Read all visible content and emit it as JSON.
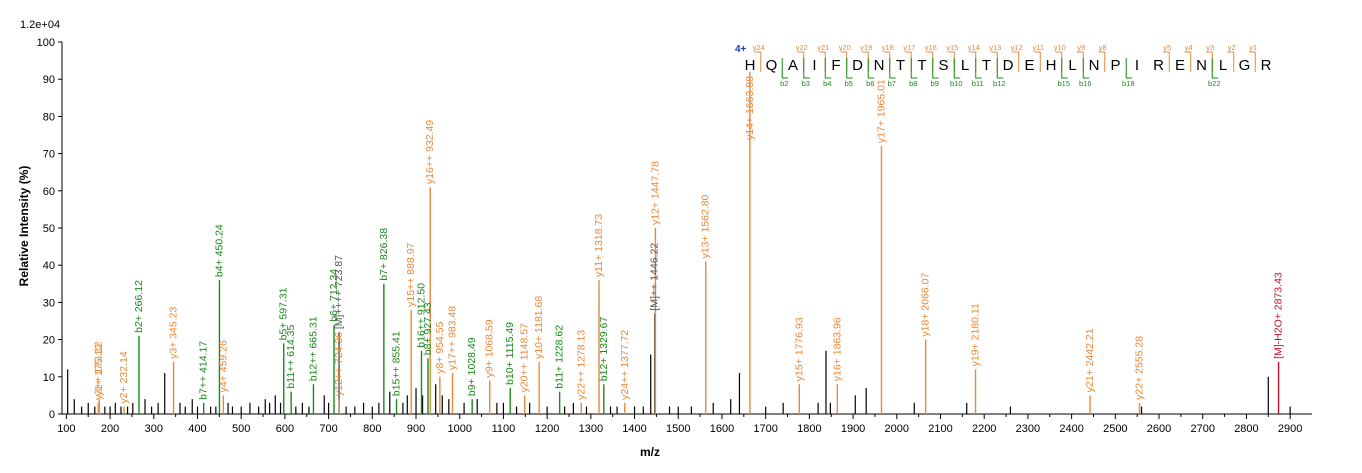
{
  "chart_data": {
    "type": "bar",
    "title": "",
    "scale_label": "1.2e+04",
    "xlabel": "m/z",
    "ylabel": "Relative  Intensity (%)",
    "xlim": [
      90,
      2950
    ],
    "ylim": [
      0,
      100
    ],
    "x_ticks": [
      100,
      200,
      300,
      400,
      500,
      600,
      700,
      800,
      900,
      1000,
      1100,
      1200,
      1300,
      1400,
      1500,
      1600,
      1700,
      1800,
      1900,
      2000,
      2100,
      2200,
      2300,
      2400,
      2500,
      2600,
      2700,
      2800,
      2900
    ],
    "y_ticks": [
      0,
      10,
      20,
      30,
      40,
      50,
      60,
      70,
      80,
      90,
      100
    ],
    "colors": {
      "y": "#e8893a",
      "b": "#1a8a1a",
      "precursor": "#c0102a",
      "unassigned": "#000000",
      "neutral": "#555555",
      "charge": "#1a3fb0"
    },
    "annotated_peaks": [
      {
        "mz": 175.12,
        "intensity": 4,
        "label": "y1+ 175.12",
        "type": "y"
      },
      {
        "mz": 173.12,
        "intensity": 3,
        "label": "y3++ 173.12",
        "type": "y"
      },
      {
        "mz": 232.14,
        "intensity": 2,
        "label": "y2+ 232.14",
        "type": "y"
      },
      {
        "mz": 266.12,
        "intensity": 21,
        "label": "b2+ 266.12",
        "type": "b"
      },
      {
        "mz": 345.23,
        "intensity": 14,
        "label": "y3+ 345.23",
        "type": "y"
      },
      {
        "mz": 414.17,
        "intensity": 3,
        "label": "b7++ 414.17",
        "type": "b"
      },
      {
        "mz": 450.24,
        "intensity": 36,
        "label": "b4+ 450.24",
        "type": "b"
      },
      {
        "mz": 459.26,
        "intensity": 5,
        "label": "y4+ 459.26",
        "type": "y"
      },
      {
        "mz": 597.31,
        "intensity": 19,
        "label": "b5+ 597.31",
        "type": "b"
      },
      {
        "mz": 614.35,
        "intensity": 6,
        "label": "b11++ 614.35",
        "type": "b"
      },
      {
        "mz": 665.31,
        "intensity": 8,
        "label": "b12++ 665.31",
        "type": "b"
      },
      {
        "mz": 712.34,
        "intensity": 24,
        "label": "b6+ 712.34",
        "type": "b"
      },
      {
        "mz": 723.87,
        "intensity": 22,
        "label": "[M]++++ 723.87",
        "type": "neutral"
      },
      {
        "mz": 724.36,
        "intensity": 4,
        "label": "y12++ 724.36",
        "type": "y"
      },
      {
        "mz": 826.38,
        "intensity": 35,
        "label": "b7+ 826.38",
        "type": "b"
      },
      {
        "mz": 855.41,
        "intensity": 4,
        "label": "b15++ 855.41",
        "type": "b"
      },
      {
        "mz": 888.97,
        "intensity": 28,
        "label": "y15++ 888.97",
        "type": "y"
      },
      {
        "mz": 912.5,
        "intensity": 17,
        "label": "b16++ 912.50",
        "type": "b"
      },
      {
        "mz": 927.43,
        "intensity": 15,
        "label": "b8+ 927.43",
        "type": "b"
      },
      {
        "mz": 932.49,
        "intensity": 61,
        "label": "y16++ 932.49",
        "type": "y"
      },
      {
        "mz": 954.55,
        "intensity": 10,
        "label": "y8+ 954.55",
        "type": "y"
      },
      {
        "mz": 983.48,
        "intensity": 11,
        "label": "y17++ 983.48",
        "type": "y"
      },
      {
        "mz": 1028.49,
        "intensity": 4,
        "label": "b9+ 1028.49",
        "type": "b"
      },
      {
        "mz": 1068.59,
        "intensity": 9,
        "label": "y9+ 1068.59",
        "type": "y"
      },
      {
        "mz": 1115.49,
        "intensity": 7,
        "label": "b10+ 1115.49",
        "type": "b"
      },
      {
        "mz": 1148.57,
        "intensity": 5,
        "label": "y20++ 1148.57",
        "type": "y"
      },
      {
        "mz": 1181.68,
        "intensity": 14,
        "label": "y10+ 1181.68",
        "type": "y"
      },
      {
        "mz": 1228.62,
        "intensity": 6,
        "label": "b11+ 1228.62",
        "type": "b"
      },
      {
        "mz": 1278.13,
        "intensity": 3,
        "label": "y22++ 1278.13",
        "type": "y"
      },
      {
        "mz": 1318.73,
        "intensity": 36,
        "label": "y11+ 1318.73",
        "type": "y"
      },
      {
        "mz": 1329.67,
        "intensity": 8,
        "label": "b12+ 1329.67",
        "type": "b"
      },
      {
        "mz": 1377.72,
        "intensity": 3,
        "label": "y24++ 1377.72",
        "type": "y"
      },
      {
        "mz": 1446.22,
        "intensity": 27,
        "label": "[M]++ 1446.22",
        "type": "neutral"
      },
      {
        "mz": 1447.78,
        "intensity": 50,
        "label": "y12+ 1447.78",
        "type": "y"
      },
      {
        "mz": 1562.8,
        "intensity": 41,
        "label": "y13+ 1562.80",
        "type": "y"
      },
      {
        "mz": 1663.88,
        "intensity": 92,
        "label": "y14+ 1663.88",
        "type": "y"
      },
      {
        "mz": 1776.93,
        "intensity": 8,
        "label": "y15+ 1776.93",
        "type": "y"
      },
      {
        "mz": 1863.96,
        "intensity": 8,
        "label": "y16+ 1863.96",
        "type": "y"
      },
      {
        "mz": 1965.01,
        "intensity": 72,
        "label": "y17+ 1965.01",
        "type": "y"
      },
      {
        "mz": 2066.07,
        "intensity": 20,
        "label": "y18+ 2066.07",
        "type": "y"
      },
      {
        "mz": 2180.11,
        "intensity": 12,
        "label": "y19+ 2180.11",
        "type": "y"
      },
      {
        "mz": 2442.21,
        "intensity": 5,
        "label": "y21+ 2442.21",
        "type": "y"
      },
      {
        "mz": 2555.28,
        "intensity": 3,
        "label": "y22+ 2555.28",
        "type": "y"
      },
      {
        "mz": 2873.43,
        "intensity": 14,
        "label": "[M]-H2O+ 2873.43",
        "type": "precursor"
      }
    ],
    "unassigned_peaks": [
      [
        103,
        12
      ],
      [
        118,
        4
      ],
      [
        135,
        2
      ],
      [
        150,
        3
      ],
      [
        165,
        2
      ],
      [
        188,
        2
      ],
      [
        200,
        2
      ],
      [
        212,
        3
      ],
      [
        225,
        2
      ],
      [
        240,
        2
      ],
      [
        252,
        3
      ],
      [
        280,
        4
      ],
      [
        295,
        2
      ],
      [
        310,
        3
      ],
      [
        325,
        11
      ],
      [
        360,
        3
      ],
      [
        372,
        2
      ],
      [
        388,
        4
      ],
      [
        400,
        2
      ],
      [
        430,
        2
      ],
      [
        442,
        2
      ],
      [
        470,
        3
      ],
      [
        480,
        2
      ],
      [
        500,
        2
      ],
      [
        520,
        3
      ],
      [
        540,
        2
      ],
      [
        555,
        4
      ],
      [
        565,
        3
      ],
      [
        578,
        5
      ],
      [
        590,
        3
      ],
      [
        625,
        2
      ],
      [
        640,
        3
      ],
      [
        655,
        2
      ],
      [
        690,
        5
      ],
      [
        700,
        3
      ],
      [
        740,
        2
      ],
      [
        760,
        2
      ],
      [
        780,
        3
      ],
      [
        800,
        2
      ],
      [
        815,
        3
      ],
      [
        840,
        6
      ],
      [
        870,
        3
      ],
      [
        880,
        5
      ],
      [
        900,
        7
      ],
      [
        915,
        5
      ],
      [
        945,
        8
      ],
      [
        960,
        5
      ],
      [
        975,
        4
      ],
      [
        1010,
        3
      ],
      [
        1040,
        4
      ],
      [
        1085,
        3
      ],
      [
        1100,
        3
      ],
      [
        1130,
        2
      ],
      [
        1160,
        3
      ],
      [
        1200,
        2
      ],
      [
        1240,
        2
      ],
      [
        1260,
        3
      ],
      [
        1290,
        2
      ],
      [
        1345,
        2
      ],
      [
        1360,
        2
      ],
      [
        1400,
        2
      ],
      [
        1420,
        2
      ],
      [
        1437,
        16
      ],
      [
        1480,
        2
      ],
      [
        1500,
        2
      ],
      [
        1530,
        2
      ],
      [
        1580,
        3
      ],
      [
        1620,
        4
      ],
      [
        1640,
        11
      ],
      [
        1700,
        2
      ],
      [
        1740,
        3
      ],
      [
        1820,
        3
      ],
      [
        1838,
        17
      ],
      [
        1848,
        3
      ],
      [
        1905,
        5
      ],
      [
        1930,
        7
      ],
      [
        2040,
        3
      ],
      [
        2160,
        3
      ],
      [
        2260,
        2
      ],
      [
        2560,
        2
      ],
      [
        2850,
        10
      ],
      [
        2900,
        2
      ]
    ],
    "peptide": {
      "charge": "4+",
      "sequence": [
        "H",
        "Q",
        "A",
        "I",
        "F",
        "D",
        "N",
        "T",
        "T",
        "S",
        "L",
        "T",
        "D",
        "E",
        "H",
        "L",
        "N",
        "P",
        "I",
        "R",
        "E",
        "N",
        "L",
        "G",
        "R"
      ],
      "y_ions": [
        "y24",
        "y22",
        "y21",
        "y20",
        "y19",
        "y18",
        "y17",
        "y16",
        "y15",
        "y14",
        "y13",
        "y12",
        "y11",
        "y10",
        "y9",
        "y8",
        "y5",
        "y4",
        "y3",
        "y2",
        "y1"
      ],
      "b_ions": [
        "b2",
        "b3",
        "b4",
        "b5",
        "b6",
        "b7",
        "b8",
        "b9",
        "b10",
        "b11",
        "b12",
        "b15",
        "b16",
        "b18",
        "b22"
      ]
    }
  }
}
